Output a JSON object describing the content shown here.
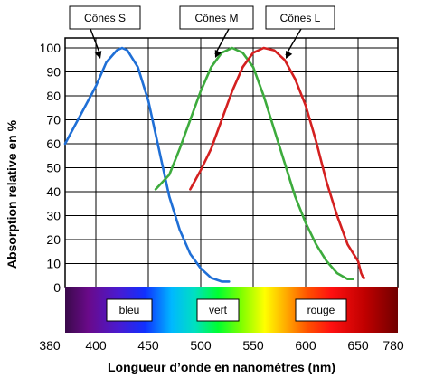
{
  "chart_data": {
    "type": "line",
    "xlabel": "Longueur d’onde en nanomètres (nm)",
    "ylabel": "Absorption relative en %",
    "ylim": [
      0,
      100
    ],
    "y_ticks": [
      0,
      10,
      20,
      30,
      40,
      50,
      60,
      70,
      80,
      90,
      100
    ],
    "x_tick_labels": [
      "380",
      "400",
      "450",
      "500",
      "550",
      "600",
      "650",
      "780"
    ],
    "grid": true,
    "series": [
      {
        "name": "Cônes S",
        "color": "#1f6fd6",
        "points": [
          [
            380,
            60
          ],
          [
            390,
            72
          ],
          [
            400,
            84
          ],
          [
            410,
            94
          ],
          [
            420,
            99
          ],
          [
            425,
            100
          ],
          [
            430,
            99
          ],
          [
            440,
            92
          ],
          [
            450,
            78
          ],
          [
            460,
            58
          ],
          [
            470,
            38
          ],
          [
            480,
            24
          ],
          [
            490,
            14
          ],
          [
            500,
            8
          ],
          [
            510,
            4
          ],
          [
            520,
            2.5
          ],
          [
            527,
            2.5
          ]
        ]
      },
      {
        "name": "Cônes M",
        "color": "#3dab3d",
        "points": [
          [
            457,
            41
          ],
          [
            470,
            47
          ],
          [
            480,
            58
          ],
          [
            490,
            70
          ],
          [
            500,
            82
          ],
          [
            510,
            92
          ],
          [
            520,
            98
          ],
          [
            530,
            100
          ],
          [
            540,
            98
          ],
          [
            550,
            92
          ],
          [
            560,
            80
          ],
          [
            570,
            66
          ],
          [
            580,
            52
          ],
          [
            590,
            38
          ],
          [
            600,
            27
          ],
          [
            610,
            18
          ],
          [
            620,
            11
          ],
          [
            630,
            6
          ],
          [
            640,
            3.5
          ],
          [
            645,
            3.5
          ]
        ]
      },
      {
        "name": "Cônes L",
        "color": "#d42020",
        "points": [
          [
            490,
            41
          ],
          [
            500,
            49
          ],
          [
            510,
            58
          ],
          [
            520,
            70
          ],
          [
            530,
            82
          ],
          [
            540,
            92
          ],
          [
            550,
            98
          ],
          [
            560,
            100
          ],
          [
            570,
            99
          ],
          [
            580,
            95
          ],
          [
            590,
            87
          ],
          [
            600,
            76
          ],
          [
            610,
            61
          ],
          [
            620,
            44
          ],
          [
            630,
            30
          ],
          [
            640,
            18
          ],
          [
            650,
            11
          ],
          [
            660,
            6
          ],
          [
            667,
            4
          ],
          [
            670,
            4
          ]
        ]
      }
    ],
    "spectrum_bands": [
      "bleu",
      "vert",
      "rouge"
    ]
  }
}
